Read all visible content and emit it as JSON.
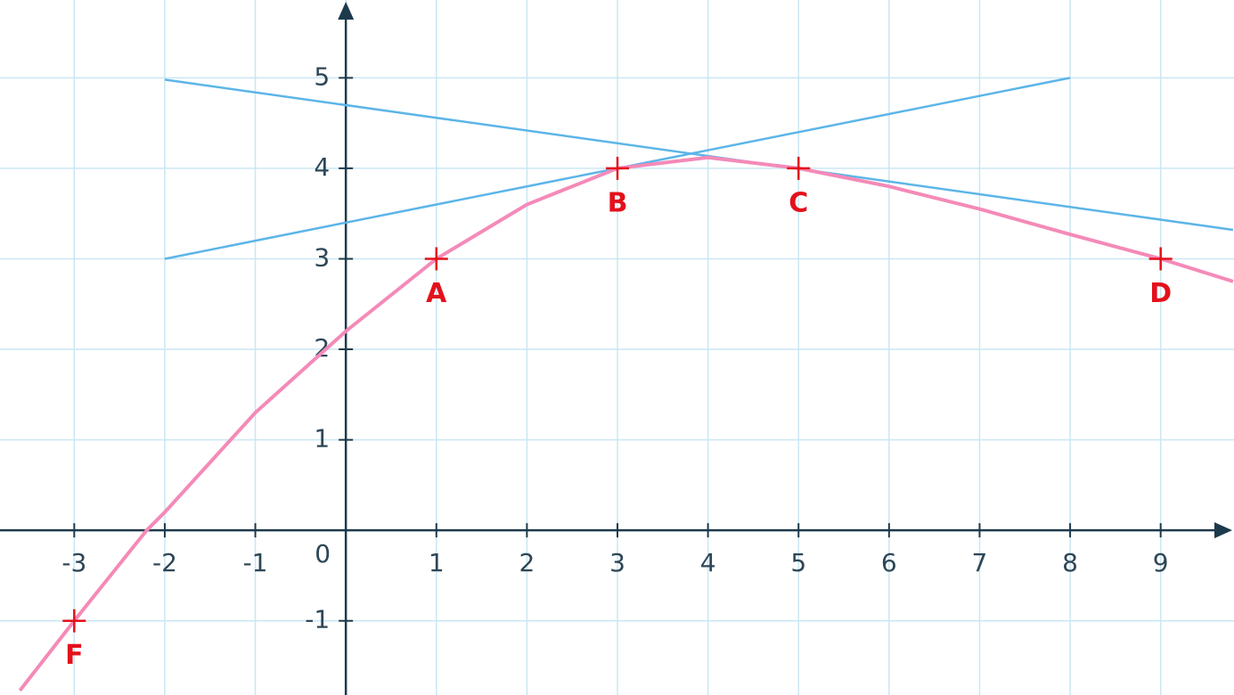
{
  "chart_data": {
    "type": "line",
    "xlim": [
      -3.82,
      9.81
    ],
    "ylim": [
      -1.82,
      5.86
    ],
    "xticks": [
      -3,
      -2,
      -1,
      0,
      1,
      2,
      3,
      4,
      5,
      6,
      7,
      8,
      9
    ],
    "yticks": [
      -1,
      1,
      2,
      3,
      4,
      5
    ],
    "grid": true,
    "grid_color": "#c9e7f3",
    "series": [
      {
        "color": "#f48ab8",
        "x": [
          -3.6,
          -3,
          -2.2,
          -2,
          -1,
          0,
          1,
          2,
          3,
          4,
          5,
          6,
          7,
          8,
          9,
          9.8
        ],
        "values": [
          -1.77,
          -1,
          0,
          0.2,
          1.3,
          2.2,
          3,
          3.6,
          4,
          4.12,
          4,
          3.8,
          3.55,
          3.27,
          3,
          2.75
        ]
      },
      {
        "color": "#5cb5e8",
        "x": [
          -2,
          8
        ],
        "values": [
          3,
          5
        ]
      },
      {
        "color": "#5cb5e8",
        "x": [
          -2,
          9.8
        ],
        "values": [
          4.98,
          3.32
        ]
      }
    ],
    "points": {
      "color": "#e3111b",
      "labels": [
        "F",
        "A",
        "B",
        "C",
        "D"
      ],
      "x": [
        -3,
        1,
        3,
        5,
        9
      ],
      "values": [
        -1,
        3,
        4,
        4,
        3
      ]
    }
  }
}
